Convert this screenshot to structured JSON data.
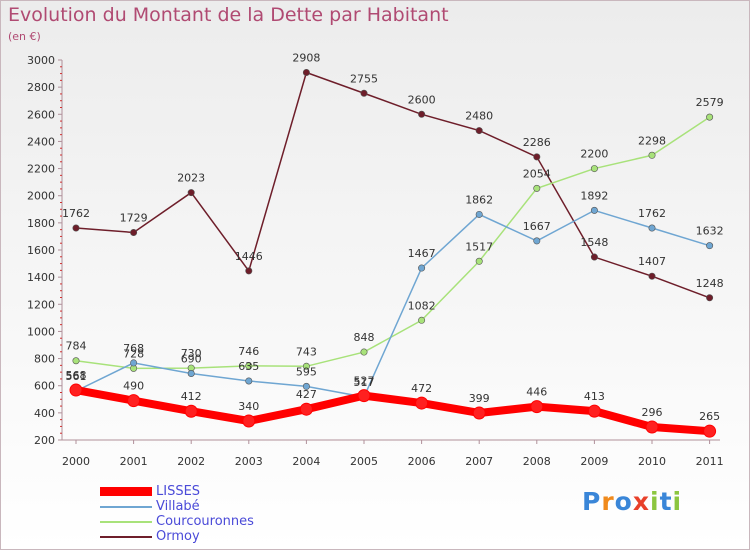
{
  "header": {
    "title": "Evolution du Montant de la Dette par Habitant",
    "unit": "(en €)"
  },
  "logo": {
    "text": "Proxiti",
    "letter_colors": [
      "#3a86d8",
      "#f08a1c",
      "#3a86d8",
      "#e8402a",
      "#8cc63f",
      "#3a86d8",
      "#8cc63f"
    ]
  },
  "chart_data": {
    "type": "line",
    "title": "Evolution du Montant de la Dette par Habitant",
    "subtitle": "(en €)",
    "xlabel": "",
    "ylabel": "",
    "categories": [
      "2000",
      "2001",
      "2002",
      "2003",
      "2004",
      "2005",
      "2006",
      "2007",
      "2008",
      "2009",
      "2010",
      "2011"
    ],
    "ylim": [
      200,
      3000
    ],
    "yticks": [
      200,
      400,
      600,
      800,
      1000,
      1200,
      1400,
      1600,
      1800,
      2000,
      2200,
      2400,
      2600,
      2800,
      3000
    ],
    "grid": false,
    "legend_position": "bottom-left",
    "series": [
      {
        "name": "Ormoy",
        "color": "#6e1e2a",
        "values": [
          1762,
          1729,
          2023,
          1446,
          2908,
          2755,
          2600,
          2480,
          2286,
          1548,
          1407,
          1248
        ]
      },
      {
        "name": "Courcouronnes",
        "color": "#a8e27a",
        "values": [
          784,
          728,
          730,
          746,
          743,
          848,
          1082,
          1517,
          2054,
          2200,
          2298,
          2579
        ]
      },
      {
        "name": "Villabé",
        "color": "#6fa6d2",
        "values": [
          561,
          768,
          690,
          635,
          595,
          517,
          1467,
          1862,
          1667,
          1892,
          1762,
          1632
        ]
      },
      {
        "name": "LISSES",
        "color": "#ff0000",
        "values": [
          568,
          490,
          412,
          340,
          427,
          527,
          472,
          399,
          446,
          413,
          296,
          265
        ]
      }
    ],
    "legend": [
      "LISSES",
      "Villabé",
      "Courcouronnes",
      "Ormoy"
    ]
  }
}
